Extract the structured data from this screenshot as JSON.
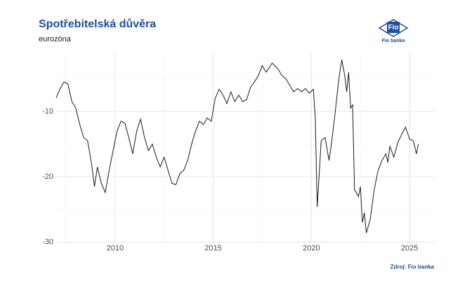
{
  "chart_data": {
    "type": "line",
    "title": "Spotřebitelská důvěra",
    "subtitle": "eurozóna",
    "source": "Zdroj: Fio banka",
    "logo": {
      "mark": "Fio",
      "name": "Fio banka"
    },
    "x": [
      2007.0,
      2007.2,
      2007.4,
      2007.6,
      2007.8,
      2008.0,
      2008.2,
      2008.4,
      2008.6,
      2008.8,
      2008.95,
      2009.1,
      2009.3,
      2009.5,
      2009.7,
      2009.9,
      2010.1,
      2010.3,
      2010.5,
      2010.7,
      2010.9,
      2011.1,
      2011.3,
      2011.5,
      2011.7,
      2011.9,
      2012.1,
      2012.3,
      2012.5,
      2012.7,
      2012.9,
      2013.1,
      2013.3,
      2013.5,
      2013.7,
      2013.9,
      2014.1,
      2014.3,
      2014.5,
      2014.7,
      2014.9,
      2015.1,
      2015.3,
      2015.5,
      2015.7,
      2015.9,
      2016.1,
      2016.3,
      2016.5,
      2016.7,
      2016.9,
      2017.1,
      2017.3,
      2017.5,
      2017.7,
      2018.0,
      2018.3,
      2018.5,
      2018.7,
      2018.9,
      2019.1,
      2019.3,
      2019.5,
      2019.7,
      2019.9,
      2020.1,
      2020.2,
      2020.3,
      2020.5,
      2020.7,
      2020.9,
      2021.0,
      2021.2,
      2021.4,
      2021.55,
      2021.7,
      2021.8,
      2021.9,
      2022.0,
      2022.1,
      2022.2,
      2022.4,
      2022.5,
      2022.6,
      2022.7,
      2022.8,
      2023.0,
      2023.2,
      2023.4,
      2023.6,
      2023.8,
      2023.9,
      2024.0,
      2024.2,
      2024.4,
      2024.6,
      2024.8,
      2025.0,
      2025.2,
      2025.35,
      2025.45
    ],
    "series": [
      {
        "name": "eurozóna",
        "color": "#1a1a1a",
        "values": [
          -7.9,
          -6.5,
          -5.5,
          -5.8,
          -8.5,
          -9.5,
          -12,
          -14,
          -14.5,
          -18,
          -21.5,
          -18.5,
          -21,
          -22.4,
          -19,
          -16,
          -13,
          -11.5,
          -11.8,
          -14,
          -16.5,
          -13,
          -11.2,
          -14,
          -16,
          -15,
          -17,
          -18.5,
          -17,
          -19,
          -21,
          -21.2,
          -19.5,
          -19,
          -17.5,
          -15,
          -13,
          -11.5,
          -12,
          -11,
          -11.5,
          -8,
          -6.6,
          -7.5,
          -8.8,
          -7,
          -8.5,
          -7.5,
          -8.5,
          -8.2,
          -6.3,
          -5.5,
          -4.5,
          -3,
          -4,
          -2.6,
          -3.5,
          -4.5,
          -5,
          -6,
          -7,
          -6.5,
          -7,
          -6.5,
          -7.2,
          -6.6,
          -11,
          -24.6,
          -14.5,
          -14,
          -17.5,
          -15.5,
          -10.5,
          -5,
          -2.1,
          -4.5,
          -7,
          -4,
          -9.5,
          -9,
          -22,
          -23,
          -21.5,
          -27,
          -25.5,
          -28.6,
          -26.5,
          -22,
          -19,
          -17.5,
          -16.5,
          -17.8,
          -15.3,
          -17,
          -14.8,
          -13.5,
          -12.4,
          -14.2,
          -14.5,
          -16.5,
          -15
        ]
      }
    ],
    "xlim": [
      2007.0,
      2026.25
    ],
    "ylim": [
      -30.3,
      -1
    ],
    "xticks": [
      2010,
      2015,
      2020,
      2025
    ],
    "yticks": [
      -30,
      -20,
      -10
    ],
    "xminor": [
      2007.5,
      2012.5,
      2017.5,
      2022.5
    ],
    "yminor": [
      -25,
      -15,
      -5
    ],
    "grid": true
  }
}
